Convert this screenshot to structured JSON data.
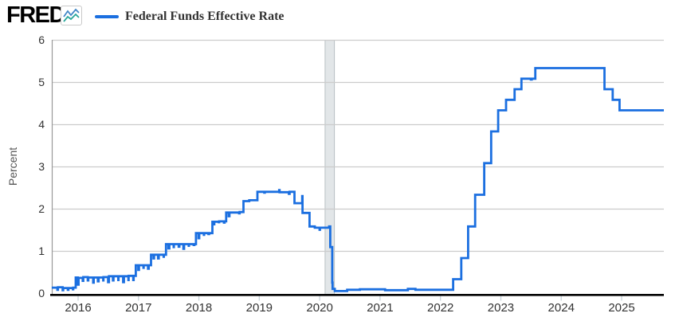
{
  "header": {
    "logo_text": "FRED",
    "registered_mark": "®",
    "logo_icon": "line-chart-icon",
    "legend": {
      "label": "Federal Funds Effective Rate",
      "color": "#1b6fe0"
    }
  },
  "chart_data": {
    "type": "line",
    "title": "",
    "ylabel": "Percent",
    "xlabel": "",
    "legend_position": "top-left",
    "grid": "horizontal",
    "ylim": [
      0,
      6
    ],
    "y_ticks": [
      0,
      1,
      2,
      3,
      4,
      5,
      6
    ],
    "x_ticks": [
      2016,
      2017,
      2018,
      2019,
      2020,
      2021,
      2022,
      2023,
      2024,
      2025
    ],
    "x_domain": [
      "2015-07-24",
      "2025-09-10"
    ],
    "step_interpolation": "step-after",
    "units": "percent",
    "recession_band": {
      "start": "2020-02-01",
      "end": "2020-04-01",
      "fill": "#e2e6e8",
      "edge_color": "#b9c0c4"
    },
    "colors": {
      "series": "#1b6fe0",
      "gridline": "#cccccc",
      "axis_line": "#000000",
      "plot_left_border": "#999999",
      "tick_mark": "#c9d4da",
      "tick_label": "#333333",
      "axis_title": "#555555"
    },
    "series": [
      {
        "name": "Federal Funds Effective Rate",
        "color": "#1b6fe0",
        "points": [
          [
            "2015-07-24",
            0.13
          ],
          [
            "2015-08-28",
            0.08
          ],
          [
            "2015-09-01",
            0.14
          ],
          [
            "2015-09-29",
            0.07
          ],
          [
            "2015-10-02",
            0.12
          ],
          [
            "2015-10-30",
            0.08
          ],
          [
            "2015-11-03",
            0.12
          ],
          [
            "2015-11-30",
            0.09
          ],
          [
            "2015-12-02",
            0.13
          ],
          [
            "2015-12-17",
            0.37
          ],
          [
            "2015-12-30",
            0.2
          ],
          [
            "2016-01-04",
            0.36
          ],
          [
            "2016-01-29",
            0.29
          ],
          [
            "2016-02-02",
            0.38
          ],
          [
            "2016-02-29",
            0.3
          ],
          [
            "2016-03-02",
            0.37
          ],
          [
            "2016-03-31",
            0.25
          ],
          [
            "2016-04-04",
            0.37
          ],
          [
            "2016-04-29",
            0.28
          ],
          [
            "2016-05-03",
            0.37
          ],
          [
            "2016-05-31",
            0.3
          ],
          [
            "2016-06-02",
            0.38
          ],
          [
            "2016-06-30",
            0.26
          ],
          [
            "2016-07-05",
            0.4
          ],
          [
            "2016-07-29",
            0.3
          ],
          [
            "2016-08-02",
            0.4
          ],
          [
            "2016-08-31",
            0.31
          ],
          [
            "2016-09-02",
            0.4
          ],
          [
            "2016-09-30",
            0.26
          ],
          [
            "2016-10-04",
            0.4
          ],
          [
            "2016-10-31",
            0.31
          ],
          [
            "2016-11-02",
            0.41
          ],
          [
            "2016-11-30",
            0.31
          ],
          [
            "2016-12-02",
            0.41
          ],
          [
            "2016-12-15",
            0.66
          ],
          [
            "2016-12-30",
            0.55
          ],
          [
            "2017-01-04",
            0.66
          ],
          [
            "2017-01-31",
            0.6
          ],
          [
            "2017-02-02",
            0.66
          ],
          [
            "2017-02-28",
            0.58
          ],
          [
            "2017-03-02",
            0.66
          ],
          [
            "2017-03-16",
            0.91
          ],
          [
            "2017-03-31",
            0.82
          ],
          [
            "2017-04-04",
            0.91
          ],
          [
            "2017-04-28",
            0.82
          ],
          [
            "2017-05-02",
            0.91
          ],
          [
            "2017-05-31",
            0.86
          ],
          [
            "2017-06-02",
            0.91
          ],
          [
            "2017-06-15",
            1.16
          ],
          [
            "2017-06-30",
            1.06
          ],
          [
            "2017-07-05",
            1.16
          ],
          [
            "2017-07-31",
            1.09
          ],
          [
            "2017-08-02",
            1.16
          ],
          [
            "2017-08-31",
            1.1
          ],
          [
            "2017-09-05",
            1.16
          ],
          [
            "2017-09-29",
            1.05
          ],
          [
            "2017-10-03",
            1.16
          ],
          [
            "2017-10-31",
            1.12
          ],
          [
            "2017-11-02",
            1.16
          ],
          [
            "2017-11-30",
            1.14
          ],
          [
            "2017-12-04",
            1.16
          ],
          [
            "2017-12-14",
            1.42
          ],
          [
            "2017-12-29",
            1.3
          ],
          [
            "2018-01-03",
            1.42
          ],
          [
            "2018-01-31",
            1.38
          ],
          [
            "2018-02-02",
            1.42
          ],
          [
            "2018-02-28",
            1.4
          ],
          [
            "2018-03-02",
            1.42
          ],
          [
            "2018-03-22",
            1.69
          ],
          [
            "2018-03-29",
            1.63
          ],
          [
            "2018-04-03",
            1.69
          ],
          [
            "2018-04-30",
            1.68
          ],
          [
            "2018-05-02",
            1.7
          ],
          [
            "2018-05-31",
            1.67
          ],
          [
            "2018-06-04",
            1.7
          ],
          [
            "2018-06-14",
            1.91
          ],
          [
            "2018-06-29",
            1.82
          ],
          [
            "2018-07-03",
            1.91
          ],
          [
            "2018-08-31",
            1.89
          ],
          [
            "2018-09-04",
            1.92
          ],
          [
            "2018-09-27",
            2.18
          ],
          [
            "2018-10-31",
            2.19
          ],
          [
            "2018-11-02",
            2.2
          ],
          [
            "2018-12-20",
            2.4
          ],
          [
            "2019-01-31",
            2.38
          ],
          [
            "2019-02-04",
            2.4
          ],
          [
            "2019-04-30",
            2.44
          ],
          [
            "2019-05-02",
            2.39
          ],
          [
            "2019-06-28",
            2.35
          ],
          [
            "2019-07-02",
            2.4
          ],
          [
            "2019-08-01",
            2.13
          ],
          [
            "2019-09-17",
            2.3
          ],
          [
            "2019-09-19",
            1.9
          ],
          [
            "2019-10-31",
            1.58
          ],
          [
            "2019-12-02",
            1.55
          ],
          [
            "2019-12-31",
            1.5
          ],
          [
            "2020-01-03",
            1.55
          ],
          [
            "2020-02-28",
            1.58
          ],
          [
            "2020-03-04",
            1.09
          ],
          [
            "2020-03-16",
            0.25
          ],
          [
            "2020-03-18",
            0.1
          ],
          [
            "2020-04-01",
            0.05
          ],
          [
            "2020-06-15",
            0.08
          ],
          [
            "2020-09-01",
            0.09
          ],
          [
            "2021-02-01",
            0.07
          ],
          [
            "2021-06-17",
            0.1
          ],
          [
            "2021-08-02",
            0.08
          ],
          [
            "2022-03-17",
            0.33
          ],
          [
            "2022-05-05",
            0.83
          ],
          [
            "2022-06-16",
            1.58
          ],
          [
            "2022-07-28",
            2.33
          ],
          [
            "2022-09-22",
            3.08
          ],
          [
            "2022-11-03",
            3.83
          ],
          [
            "2022-12-15",
            4.33
          ],
          [
            "2023-02-02",
            4.58
          ],
          [
            "2023-03-23",
            4.83
          ],
          [
            "2023-05-04",
            5.08
          ],
          [
            "2023-06-30",
            5.06
          ],
          [
            "2023-07-05",
            5.08
          ],
          [
            "2023-07-27",
            5.33
          ],
          [
            "2024-09-19",
            4.83
          ],
          [
            "2024-11-08",
            4.58
          ],
          [
            "2024-12-19",
            4.33
          ],
          [
            "2025-09-10",
            4.33
          ]
        ]
      }
    ]
  }
}
